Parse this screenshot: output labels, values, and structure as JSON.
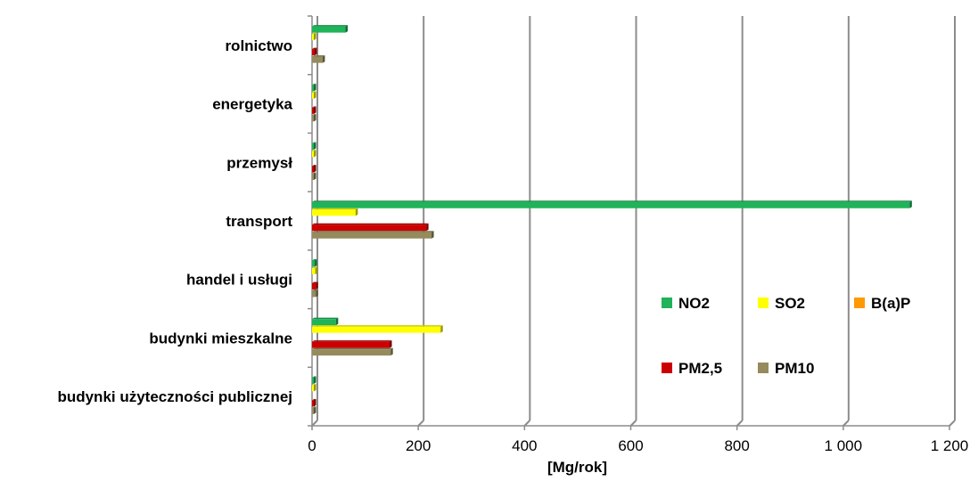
{
  "chart_data": {
    "type": "bar",
    "orientation": "horizontal",
    "categories": [
      "rolnictwo",
      "energetyka",
      "przemysł",
      "transport",
      "handel i usługi",
      "budynki mieszkalne",
      "budynki użyteczności publicznej"
    ],
    "series": [
      {
        "name": "NO2",
        "color": "#1fb35a",
        "values": [
          63,
          2,
          2,
          1125,
          5,
          45,
          2
        ]
      },
      {
        "name": "SO2",
        "color": "#ffff00",
        "values": [
          1,
          2,
          2,
          82,
          6,
          242,
          2
        ]
      },
      {
        "name": "B(a)P",
        "color": "#ff9900",
        "values": [
          0,
          0,
          0,
          0,
          0,
          0,
          0
        ]
      },
      {
        "name": "PM2,5",
        "color": "#cc0000",
        "values": [
          5,
          3,
          2,
          215,
          7,
          146,
          3
        ]
      },
      {
        "name": "PM10",
        "color": "#958b5c",
        "values": [
          20,
          3,
          2,
          225,
          7,
          148,
          3
        ]
      }
    ],
    "xlabel": "[Mg/rok]",
    "xlim": [
      0,
      1200
    ],
    "xticks": [
      0,
      200,
      400,
      600,
      800,
      1000,
      1200
    ],
    "xtick_labels": [
      "0",
      "200",
      "400",
      "600",
      "800",
      "1 000",
      "1 200"
    ],
    "grid": true,
    "legend_position": "lower-right"
  }
}
